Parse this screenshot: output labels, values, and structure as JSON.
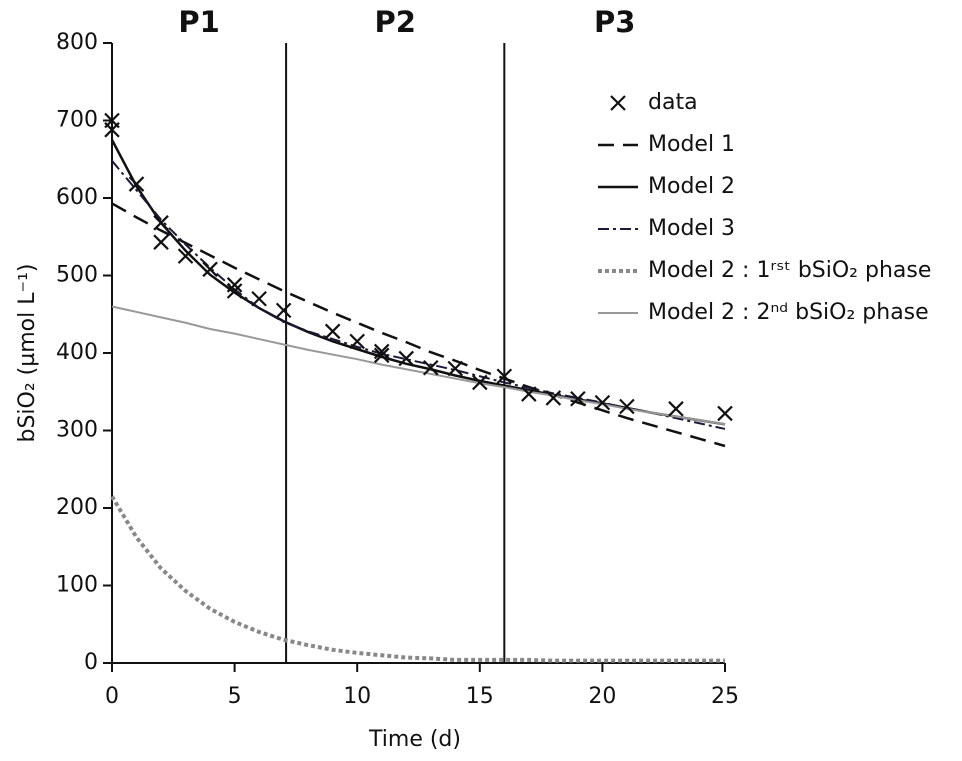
{
  "chart_data": {
    "type": "line",
    "x_label": "Time (d)",
    "y_label": "bSiO₂ (µmol L⁻¹)",
    "xlim": [
      0,
      25
    ],
    "ylim": [
      0,
      800
    ],
    "xticks": [
      0,
      5,
      10,
      15,
      20,
      25
    ],
    "yticks": [
      0,
      100,
      200,
      300,
      400,
      500,
      600,
      700,
      800
    ],
    "grid": false,
    "legend": "upper right",
    "phase_boundaries": [
      7.1,
      16
    ],
    "phase_labels": [
      "P1",
      "P2",
      "P3"
    ],
    "x": [
      0,
      1,
      2,
      3,
      4,
      5,
      6,
      7,
      8,
      9,
      10,
      11,
      12,
      13,
      14,
      15,
      16,
      17,
      18,
      19,
      20,
      21,
      22,
      23,
      24,
      25
    ],
    "series": [
      {
        "name": "data",
        "color": "#111111",
        "marker": "x",
        "x": [
          0,
          0,
          1,
          2,
          2,
          3,
          4,
          5,
          5,
          6,
          7,
          9,
          10,
          11,
          11,
          12,
          13,
          14,
          15,
          16,
          17,
          18,
          19,
          20,
          21,
          23,
          25
        ],
        "values": [
          700,
          688,
          618,
          568,
          543,
          525,
          508,
          488,
          480,
          470,
          455,
          428,
          415,
          402,
          397,
          393,
          381,
          380,
          362,
          370,
          347,
          342,
          341,
          336,
          331,
          328,
          322
        ]
      },
      {
        "name": "Model 1",
        "color": "#111111",
        "linestyle": "dashed",
        "linewidth": 2.5,
        "values": [
          593,
          575,
          558,
          542,
          526,
          510,
          495,
          480,
          466,
          452,
          439,
          426,
          414,
          401,
          390,
          378,
          367,
          356,
          346,
          336,
          326,
          316,
          307,
          298,
          289,
          280
        ]
      },
      {
        "name": "Model 2",
        "color": "#111111",
        "linestyle": "solid",
        "linewidth": 2.5,
        "values": [
          675,
          615,
          568,
          532,
          501,
          478,
          458,
          441,
          427,
          415,
          405,
          395,
          386,
          379,
          371,
          364,
          358,
          352,
          346,
          340,
          335,
          329,
          323,
          318,
          313,
          308
        ]
      },
      {
        "name": "Model 3",
        "color": "#1a1a3a",
        "linestyle": "dashdot",
        "linewidth": 2,
        "values": [
          648,
          610,
          572,
          540,
          510,
          482,
          458,
          440,
          428,
          418,
          408,
          399,
          392,
          385,
          378,
          370,
          362,
          355,
          348,
          342,
          336,
          329,
          323,
          316,
          309,
          302
        ]
      },
      {
        "name": "Model 2 : 1ʳˢᵗ bSiO₂ phase",
        "color": "#888888",
        "linestyle": "dotted",
        "linewidth": 4,
        "values": [
          215,
          162,
          122,
          93,
          70,
          53,
          40,
          30,
          23,
          17,
          13,
          10,
          7,
          6,
          4,
          4,
          4,
          4,
          3,
          3,
          3,
          3,
          3,
          3,
          3,
          3
        ]
      },
      {
        "name": "Model 2 : 2ⁿᵈ bSiO₂ phase",
        "color": "#999999",
        "linestyle": "solid",
        "linewidth": 2,
        "values": [
          460,
          453,
          446,
          439,
          431,
          425,
          418,
          411,
          404,
          398,
          392,
          385,
          379,
          373,
          367,
          361,
          356,
          350,
          345,
          339,
          334,
          328,
          323,
          318,
          313,
          308
        ]
      }
    ]
  }
}
